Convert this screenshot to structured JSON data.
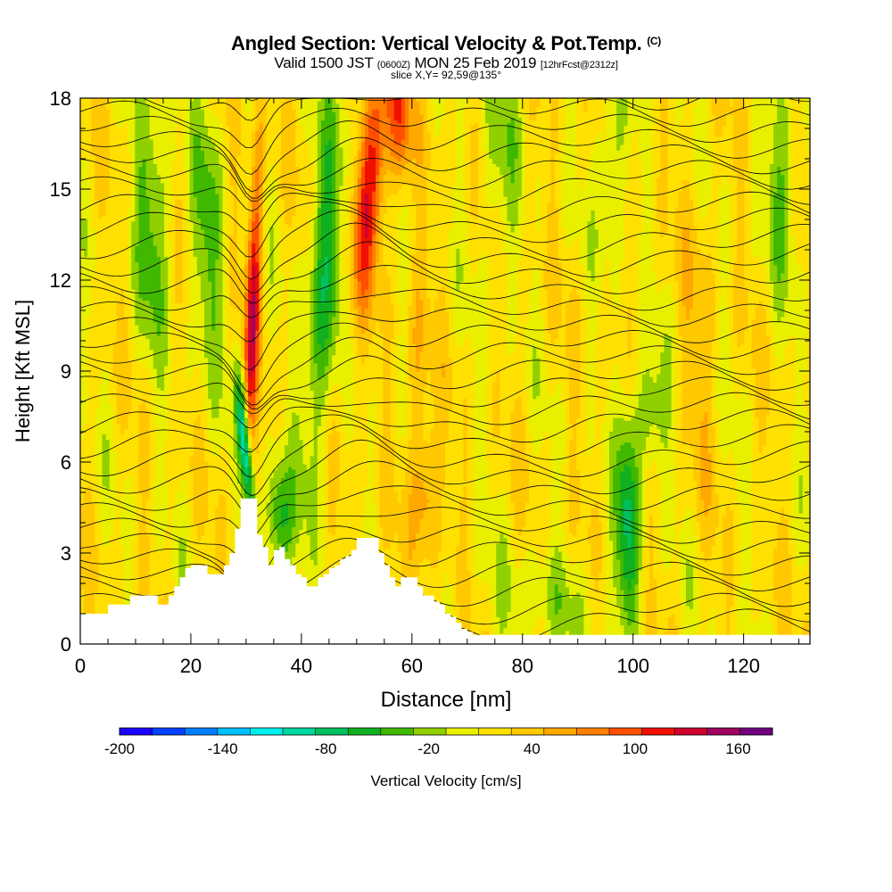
{
  "title_main": "Angled Section: Vertical Velocity & Pot.Temp.",
  "title_units": "(C)",
  "subtitle_a": "Valid 1500 JST",
  "subtitle_b": "(0600Z)",
  "subtitle_c": "MON 25 Feb 2019",
  "subtitle_d": "[12hrFcst@2312z]",
  "slice_label": "slice X,Y= 92,59@135°",
  "chart_data": {
    "type": "heatmap",
    "xlabel": "Distance [nm]",
    "ylabel": "Height [Kft MSL]",
    "xlim": [
      0,
      132
    ],
    "ylim": [
      0,
      18
    ],
    "x_ticks": [
      "0",
      "20",
      "40",
      "60",
      "80",
      "100",
      "120"
    ],
    "y_ticks": [
      "0",
      "3",
      "6",
      "9",
      "12",
      "15",
      "18"
    ],
    "colorbar": {
      "label": "Vertical Velocity [cm/s]",
      "tick_labels": [
        "-200",
        "-140",
        "-80",
        "-20",
        "40",
        "100",
        "160"
      ],
      "range": [
        -200,
        180
      ],
      "step": 20,
      "colors": [
        "#1a00ff",
        "#0040ff",
        "#0080ff",
        "#00c0ff",
        "#00f0f0",
        "#00d8a0",
        "#00c060",
        "#10b020",
        "#40b800",
        "#90d000",
        "#e8f000",
        "#ffe000",
        "#ffc800",
        "#ffa800",
        "#ff8000",
        "#ff5000",
        "#f01000",
        "#d00030",
        "#a00060",
        "#700080"
      ]
    },
    "velocity_cores_cm_s": [
      {
        "x": 31,
        "y": 11.5,
        "w": 140
      },
      {
        "x": 52,
        "y": 16.5,
        "w": 130
      },
      {
        "x": 58,
        "y": 17.5,
        "w": 120
      },
      {
        "x": 31,
        "y": 6.0,
        "w": -130
      },
      {
        "x": 36,
        "y": 4.0,
        "w": -90
      },
      {
        "x": 45,
        "y": 14.0,
        "w": -70
      },
      {
        "x": 99,
        "y": 4.5,
        "w": -80
      },
      {
        "x": 63,
        "y": 5.0,
        "w": 70
      },
      {
        "x": 127,
        "y": 15.5,
        "w": -40
      }
    ],
    "terrain_kft": [
      [
        0,
        1.0
      ],
      [
        4,
        1.0
      ],
      [
        5,
        1.3
      ],
      [
        8,
        1.3
      ],
      [
        9,
        1.6
      ],
      [
        13,
        1.6
      ],
      [
        14,
        1.3
      ],
      [
        15,
        1.3
      ],
      [
        16,
        1.6
      ],
      [
        17,
        1.9
      ],
      [
        18,
        2.2
      ],
      [
        19,
        2.5
      ],
      [
        20,
        2.6
      ],
      [
        22,
        2.6
      ],
      [
        23,
        2.3
      ],
      [
        25,
        2.3
      ],
      [
        26,
        2.6
      ],
      [
        27,
        3.0
      ],
      [
        28,
        3.8
      ],
      [
        29,
        4.8
      ],
      [
        31,
        4.8
      ],
      [
        32,
        3.6
      ],
      [
        33,
        3.2
      ],
      [
        34,
        2.6
      ],
      [
        35,
        3.1
      ],
      [
        36,
        3.2
      ],
      [
        37,
        2.8
      ],
      [
        38,
        2.6
      ],
      [
        39,
        2.3
      ],
      [
        40,
        2.2
      ],
      [
        41,
        1.9
      ],
      [
        42,
        1.9
      ],
      [
        43,
        2.2
      ],
      [
        44,
        2.3
      ],
      [
        45,
        2.5
      ],
      [
        46,
        2.6
      ],
      [
        47,
        2.8
      ],
      [
        48,
        2.9
      ],
      [
        49,
        3.1
      ],
      [
        50,
        3.5
      ],
      [
        53,
        3.5
      ],
      [
        54,
        3.0
      ],
      [
        55,
        2.6
      ],
      [
        56,
        2.2
      ],
      [
        57,
        1.9
      ],
      [
        58,
        2.2
      ],
      [
        60,
        2.2
      ],
      [
        61,
        1.9
      ],
      [
        62,
        1.6
      ],
      [
        63,
        1.6
      ],
      [
        64,
        1.4
      ],
      [
        65,
        1.3
      ],
      [
        66,
        1.0
      ],
      [
        67,
        0.9
      ],
      [
        68,
        0.7
      ],
      [
        69,
        0.5
      ],
      [
        70,
        0.4
      ],
      [
        71,
        0.3
      ],
      [
        132,
        0.3
      ]
    ]
  }
}
